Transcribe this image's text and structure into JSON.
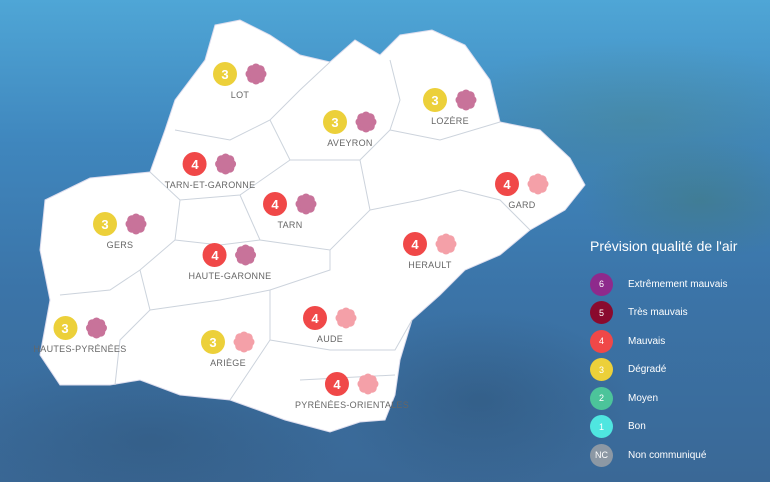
{
  "legend": {
    "title": "Prévision qualité de l'air",
    "items": [
      {
        "code": "6",
        "label": "Extrêmement mauvais",
        "color": "#8e2a8c"
      },
      {
        "code": "5",
        "label": "Très mauvais",
        "color": "#8a0a2e"
      },
      {
        "code": "4",
        "label": "Mauvais",
        "color": "#f04848"
      },
      {
        "code": "3",
        "label": "Dégradé",
        "color": "#ecd03a"
      },
      {
        "code": "2",
        "label": "Moyen",
        "color": "#4cc49a"
      },
      {
        "code": "1",
        "label": "Bon",
        "color": "#4fe6e0"
      },
      {
        "code": "NC",
        "label": "Non communiqué",
        "color": "#8c98a4"
      }
    ]
  },
  "pollen_colors": {
    "dark": "#c8739a",
    "light": "#f4a0a8"
  },
  "departments": [
    {
      "name": "LOT",
      "index": "3",
      "color": "#ecd03a",
      "pollen": "dark"
    },
    {
      "name": "AVEYRON",
      "index": "3",
      "color": "#ecd03a",
      "pollen": "dark"
    },
    {
      "name": "LOZÈRE",
      "index": "3",
      "color": "#ecd03a",
      "pollen": "dark"
    },
    {
      "name": "TARN-ET-GARONNE",
      "index": "4",
      "color": "#f04848",
      "pollen": "dark"
    },
    {
      "name": "GARD",
      "index": "4",
      "color": "#f04848",
      "pollen": "light"
    },
    {
      "name": "GERS",
      "index": "3",
      "color": "#ecd03a",
      "pollen": "dark"
    },
    {
      "name": "TARN",
      "index": "4",
      "color": "#f04848",
      "pollen": "dark"
    },
    {
      "name": "HAUTE-GARONNE",
      "index": "4",
      "color": "#f04848",
      "pollen": "dark"
    },
    {
      "name": "HERAULT",
      "index": "4",
      "color": "#f04848",
      "pollen": "light"
    },
    {
      "name": "HAUTES-PYRÉNÉES",
      "index": "3",
      "color": "#ecd03a",
      "pollen": "dark"
    },
    {
      "name": "ARIÈGE",
      "index": "3",
      "color": "#ecd03a",
      "pollen": "light"
    },
    {
      "name": "AUDE",
      "index": "4",
      "color": "#f04848",
      "pollen": "light"
    },
    {
      "name": "PYRÉNÉES-ORIENTALES",
      "index": "4",
      "color": "#f04848",
      "pollen": "light"
    }
  ]
}
